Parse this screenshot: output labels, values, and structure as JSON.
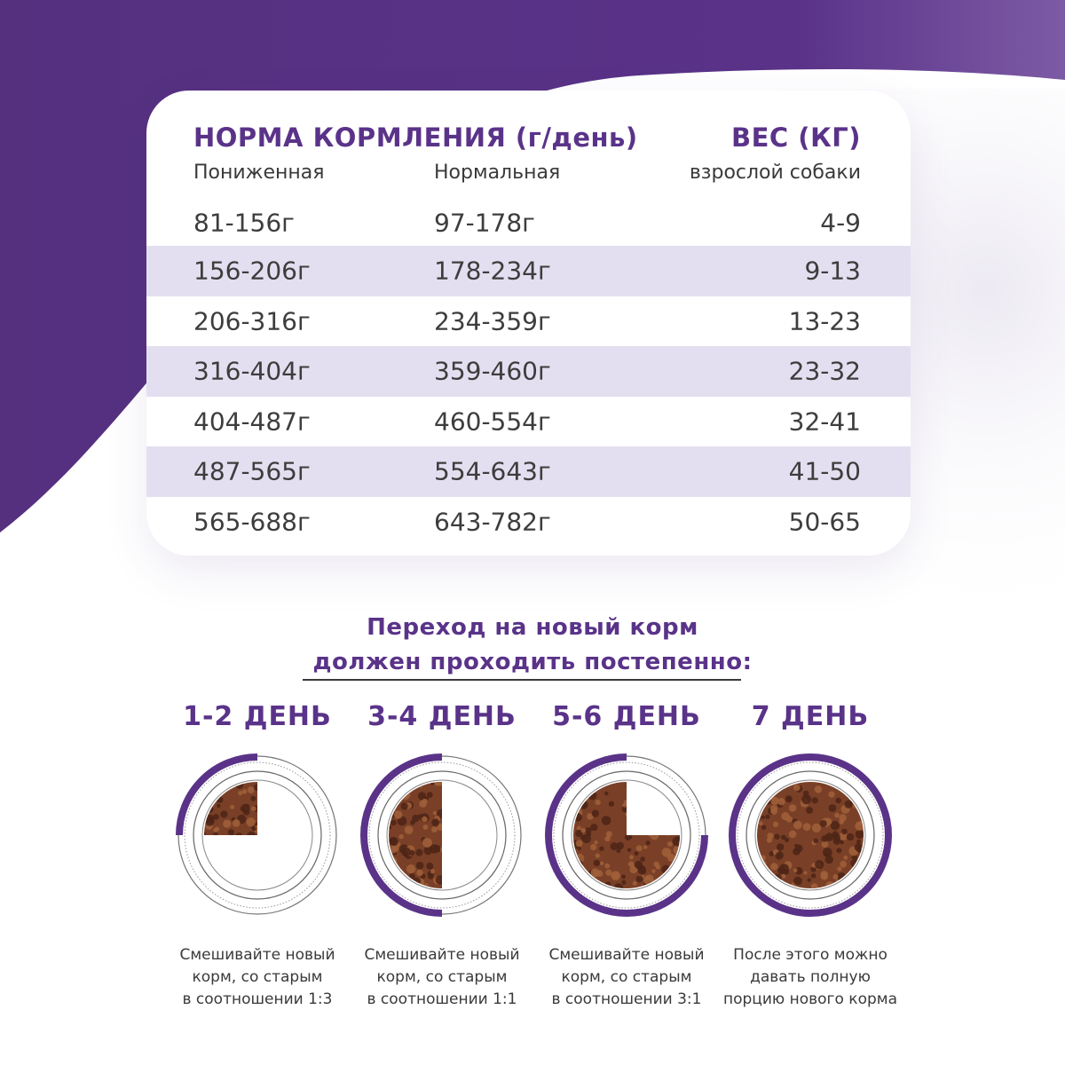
{
  "colors": {
    "brand": "#5a3389",
    "row_alt": "#e4dff0",
    "kibble": "#7a4027"
  },
  "table": {
    "title": "НОРМА КОРМЛЕНИЯ (г/день)",
    "weight_title": "ВЕС (КГ)",
    "col_reduced": "Пониженная",
    "col_normal": "Нормальная",
    "col_weight": "взрослой собаки",
    "rows": [
      {
        "reduced": "81-156г",
        "normal": "97-178г",
        "weight": "4-9"
      },
      {
        "reduced": "156-206г",
        "normal": "178-234г",
        "weight": "9-13"
      },
      {
        "reduced": "206-316г",
        "normal": "234-359г",
        "weight": "13-23"
      },
      {
        "reduced": "316-404г",
        "normal": "359-460г",
        "weight": "23-32"
      },
      {
        "reduced": "404-487г",
        "normal": "460-554г",
        "weight": "32-41"
      },
      {
        "reduced": "487-565г",
        "normal": "554-643г",
        "weight": "41-50"
      },
      {
        "reduced": "565-688г",
        "normal": "643-782г",
        "weight": "50-65"
      }
    ]
  },
  "transition": {
    "line1": "Переход на новый корм",
    "line2": "должен проходить постепенно:"
  },
  "steps": [
    {
      "title": "1-2 ДЕНЬ",
      "new_food_fraction": 0.25,
      "caption": [
        "Смешивайте новый",
        "корм, со старым",
        "в соотношении 1:3"
      ]
    },
    {
      "title": "3-4 ДЕНЬ",
      "new_food_fraction": 0.5,
      "caption": [
        "Смешивайте новый",
        "корм, со старым",
        "в соотношении 1:1"
      ]
    },
    {
      "title": "5-6 ДЕНЬ",
      "new_food_fraction": 0.75,
      "caption": [
        "Смешивайте новый",
        "корм, со старым",
        "в соотношении 3:1"
      ]
    },
    {
      "title": "7 ДЕНЬ",
      "new_food_fraction": 1.0,
      "caption": [
        "После этого можно",
        "давать полную",
        "порцию нового корма"
      ]
    }
  ]
}
